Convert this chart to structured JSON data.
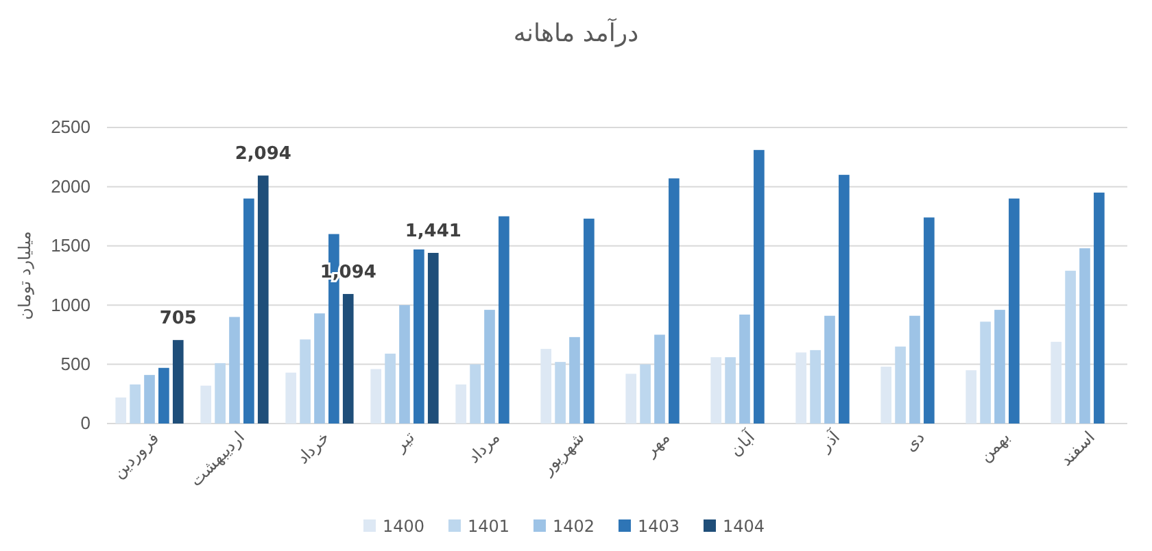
{
  "chart_data": {
    "type": "bar",
    "title": "درآمد ماهانه",
    "ylabel": "میلیارد تومان",
    "categories": [
      "فروردین",
      "اردیبهشت",
      "خرداد",
      "تیر",
      "مرداد",
      "شهریور",
      "مهر",
      "آبان",
      "آذر",
      "دی",
      "بهمن",
      "اسفند"
    ],
    "series": [
      {
        "name": "1400",
        "color": "#dde8f4",
        "values": [
          220,
          320,
          430,
          460,
          330,
          630,
          420,
          560,
          600,
          480,
          450,
          690
        ]
      },
      {
        "name": "1401",
        "color": "#bdd7ee",
        "values": [
          330,
          510,
          710,
          590,
          500,
          520,
          500,
          560,
          620,
          650,
          860,
          1290
        ]
      },
      {
        "name": "1402",
        "color": "#9dc3e6",
        "values": [
          410,
          900,
          930,
          1000,
          960,
          730,
          750,
          920,
          910,
          910,
          960,
          1480
        ]
      },
      {
        "name": "1403",
        "color": "#2e75b6",
        "values": [
          470,
          1900,
          1600,
          1470,
          1750,
          1730,
          2070,
          2310,
          2100,
          1740,
          1900,
          1950
        ]
      },
      {
        "name": "1404",
        "color": "#1f4e79",
        "values": [
          705,
          2094,
          1094,
          1441,
          null,
          null,
          null,
          null,
          null,
          null,
          null,
          null
        ],
        "value_labels": [
          "705",
          "2,094",
          "1,094",
          "1,441",
          null,
          null,
          null,
          null,
          null,
          null,
          null,
          null
        ]
      }
    ],
    "ylim": [
      0,
      2500
    ],
    "yticks": [
      0,
      500,
      1000,
      1500,
      2000,
      2500
    ],
    "grid": "y",
    "legend": "bottom"
  }
}
